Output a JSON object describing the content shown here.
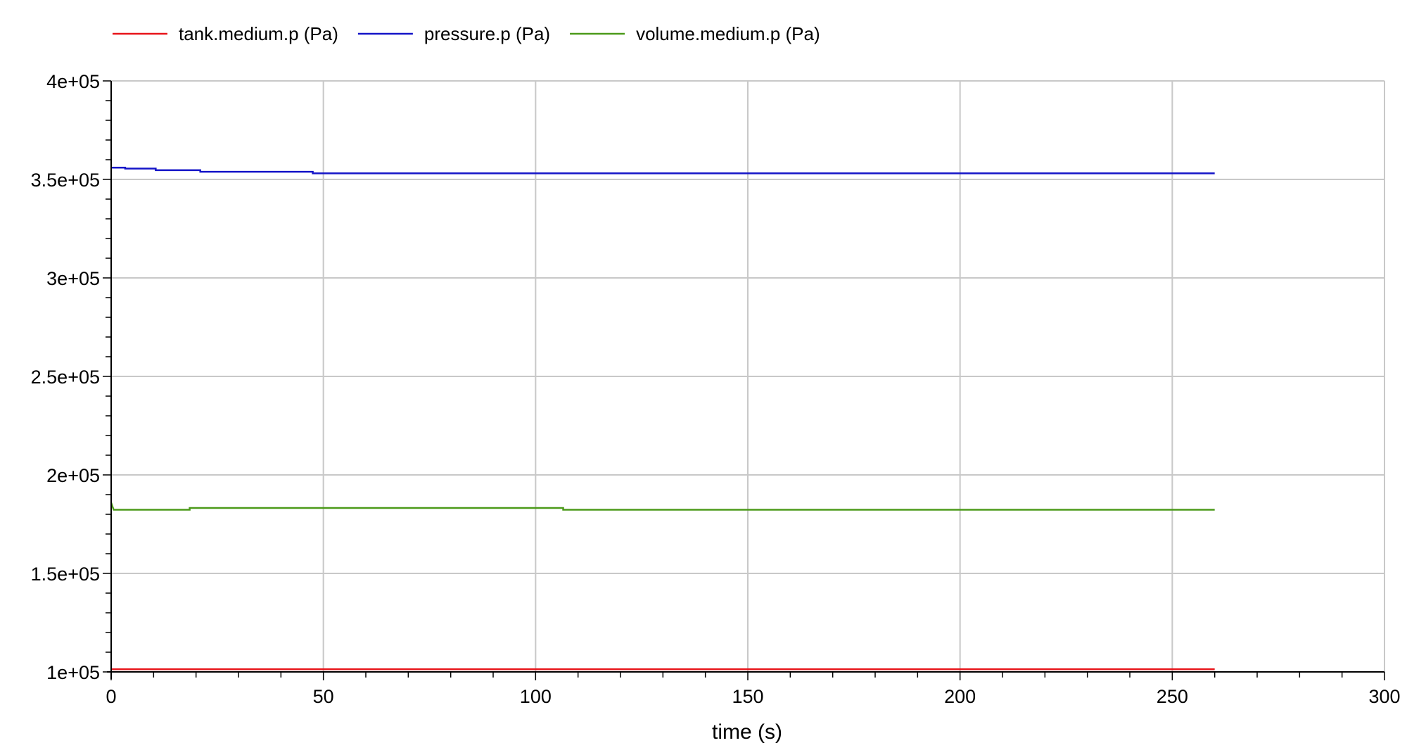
{
  "chart_data": {
    "type": "line",
    "xlabel": "time (s)",
    "ylabel": "",
    "xlim": [
      0,
      300
    ],
    "ylim": [
      100000,
      400000
    ],
    "x_ticks": [
      0,
      50,
      100,
      150,
      200,
      250,
      300
    ],
    "x_tick_labels": [
      "0",
      "50",
      "100",
      "150",
      "200",
      "250",
      "300"
    ],
    "y_ticks": [
      100000,
      150000,
      200000,
      250000,
      300000,
      350000,
      400000
    ],
    "y_tick_labels": [
      "1e+05",
      "1.5e+05",
      "2e+05",
      "2.5e+05",
      "3e+05",
      "3.5e+05",
      "4e+05"
    ],
    "grid": true,
    "legend_position": "top-left",
    "series": [
      {
        "name": "tank.medium.p (Pa)",
        "color": "#e8141a",
        "points": [
          [
            0,
            101325
          ],
          [
            260,
            101325
          ]
        ]
      },
      {
        "name": "pressure.p (Pa)",
        "color": "#1414c8",
        "points": [
          [
            0,
            356000
          ],
          [
            3.3,
            356000
          ],
          [
            3.3,
            355500
          ],
          [
            10.5,
            355500
          ],
          [
            10.5,
            354700
          ],
          [
            21,
            354700
          ],
          [
            21,
            353900
          ],
          [
            47.5,
            353900
          ],
          [
            47.5,
            353100
          ],
          [
            260,
            353100
          ]
        ]
      },
      {
        "name": "volume.medium.p (Pa)",
        "color": "#4c9a1a",
        "points": [
          [
            0,
            186000
          ],
          [
            0.3,
            184000
          ],
          [
            0.6,
            182300
          ],
          [
            18.5,
            182300
          ],
          [
            18.5,
            183200
          ],
          [
            106.5,
            183200
          ],
          [
            106.5,
            182300
          ],
          [
            260,
            182300
          ]
        ]
      }
    ]
  }
}
